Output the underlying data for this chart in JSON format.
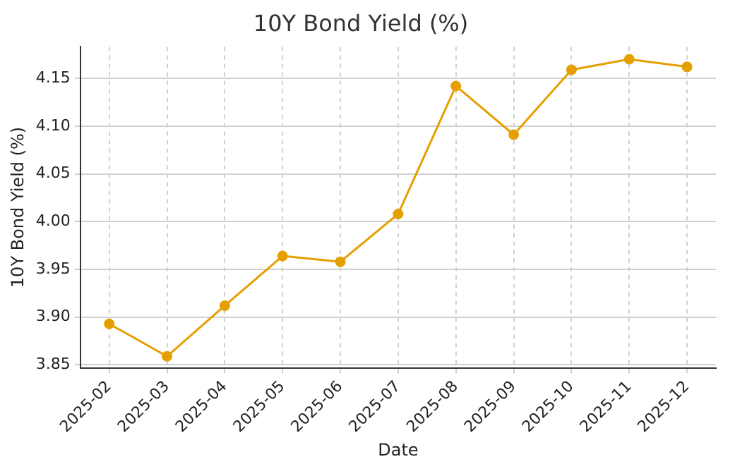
{
  "chart_data": {
    "type": "line",
    "title": "10Y Bond Yield (%)",
    "xlabel": "Date",
    "ylabel": "10Y Bond Yield (%)",
    "categories": [
      "2025-02",
      "2025-03",
      "2025-04",
      "2025-05",
      "2025-06",
      "2025-07",
      "2025-08",
      "2025-09",
      "2025-10",
      "2025-11",
      "2025-12"
    ],
    "series": [
      {
        "color": "#e69f00",
        "values": [
          3.893,
          3.859,
          3.912,
          3.964,
          3.958,
          4.008,
          4.142,
          4.091,
          4.159,
          4.17,
          4.162
        ]
      }
    ],
    "ylim": [
      3.847,
      4.183
    ],
    "yticks": [
      3.85,
      {
        "value": 3.9,
        "label": "3.90"
      },
      3.95,
      {
        "value": 4,
        "label": "4.00"
      },
      4.05,
      {
        "value": 4.1,
        "label": "4.10"
      },
      4.15
    ],
    "grid": true,
    "marker": "circle",
    "line_style": "solid"
  }
}
